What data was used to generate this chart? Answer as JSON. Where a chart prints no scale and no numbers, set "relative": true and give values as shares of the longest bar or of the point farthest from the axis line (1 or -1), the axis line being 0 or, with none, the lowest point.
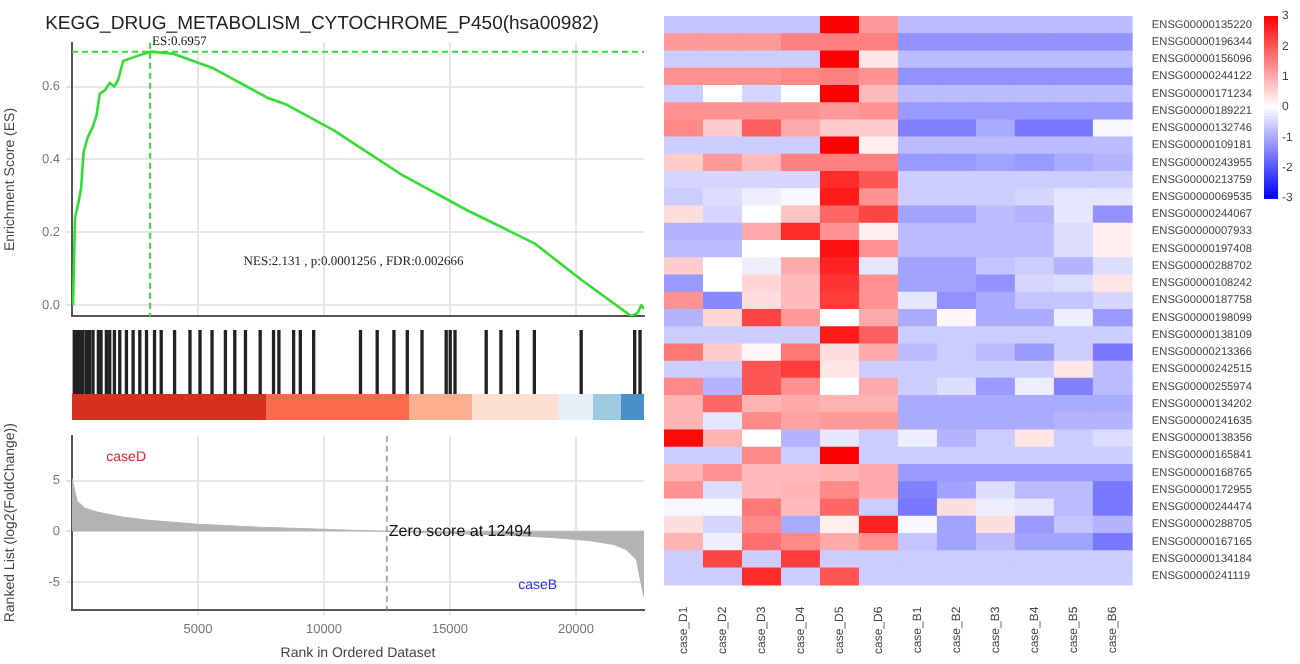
{
  "chart_data": [
    {
      "type": "line",
      "title": "KEGG_DRUG_METABOLISM_CYTOCHROME_P450(hsa00982)",
      "ylabel": "Enrichment Score (ES)",
      "color": "#33dd33",
      "x": [
        40,
        120,
        250,
        360,
        460,
        620,
        830,
        970,
        1100,
        1310,
        1500,
        1680,
        1840,
        2030,
        2430,
        3100,
        4020,
        4810,
        5610,
        7730,
        8530,
        10390,
        13040,
        15700,
        18350,
        20210,
        22200,
        22460,
        22590,
        22700
      ],
      "values": [
        0,
        0.24,
        0.28,
        0.32,
        0.42,
        0.46,
        0.49,
        0.52,
        0.58,
        0.59,
        0.61,
        0.6,
        0.62,
        0.67,
        0.68,
        0.6957,
        0.69,
        0.67,
        0.65,
        0.57,
        0.55,
        0.48,
        0.36,
        0.26,
        0.17,
        0.07,
        -0.03,
        -0.02,
        0,
        -0.01
      ],
      "xlim": [
        0,
        22700
      ],
      "xticks": [
        5000,
        10000,
        15000,
        20000
      ],
      "ylim": [
        -0.03,
        0.72
      ],
      "yticks": [
        {
          "value": 0,
          "label": "0.0"
        },
        0.2,
        0.4,
        0.6
      ],
      "tick_labels": "y",
      "grid": true,
      "ref_lines": [
        {
          "axis": "x",
          "value": 3100,
          "color": "#33dd33",
          "line_style": "dashed"
        },
        {
          "axis": "y",
          "value": 0.6957,
          "color": "#33dd33",
          "line_style": "dashed"
        }
      ],
      "annotations": [
        {
          "text": "ES:0.6957",
          "x": 3100,
          "y": 0.6957
        },
        "NES:2.131 , p:0.0001256 , FDR:0.002666"
      ]
    },
    {
      "type": "bar",
      "relative": true,
      "color": "#222222",
      "tick_labels": false,
      "xlim": [
        0,
        22700
      ],
      "x": [
        90,
        170,
        250,
        330,
        435,
        568,
        700,
        833,
        1046,
        1152,
        1364,
        1497,
        1683,
        1895,
        2160,
        2426,
        2691,
        2957,
        3275,
        3540,
        4071,
        4682,
        5080,
        5557,
        6088,
        6460,
        6884,
        7468,
        7998,
        8211,
        8795,
        9060,
        9591,
        11449,
        12112,
        12775,
        13306,
        13890,
        14850,
        15010,
        15200,
        16438,
        17022,
        17685,
        18349,
        20207,
        22330,
        22542
      ],
      "values": [
        1,
        1,
        1,
        1,
        1,
        1,
        1,
        1,
        1,
        1,
        1,
        1,
        1,
        1,
        1,
        1,
        1,
        1,
        1,
        1,
        1,
        1,
        1,
        1,
        1,
        1,
        1,
        1,
        1,
        1,
        1,
        1,
        1,
        1,
        1,
        1,
        1,
        1,
        1,
        1,
        1,
        1,
        1,
        1,
        1,
        1,
        1,
        1
      ]
    },
    {
      "type": "area",
      "xlabel": "Rank in Ordered Dataset",
      "ylabel": "Ranked List (log2(FoldChange))",
      "color": "#b3b3b3",
      "x": [
        0,
        200,
        500,
        1000,
        2000,
        3000,
        5000,
        7500,
        10000,
        12494,
        15000,
        17500,
        19000,
        20500,
        21500,
        22000,
        22400,
        22700
      ],
      "values": [
        5.2,
        3,
        2.3,
        1.9,
        1.4,
        1.1,
        0.7,
        0.4,
        0.2,
        0,
        -0.2,
        -0.4,
        -0.6,
        -0.9,
        -1.3,
        -1.8,
        -2.8,
        -6.5
      ],
      "xlim": [
        0,
        22700
      ],
      "xticks": [
        5000,
        10000,
        15000,
        20000
      ],
      "ylim": [
        -7.7,
        9.4
      ],
      "yticks": [
        -5,
        0,
        5
      ],
      "grid": true,
      "ref_lines": [
        {
          "axis": "x",
          "value": 12494,
          "color": "#aaaaaa",
          "line_style": "dashed"
        }
      ],
      "annotations": [
        "caseD",
        "caseB",
        {
          "text": "Zero score at 12494",
          "x": 12494,
          "y": 0
        }
      ]
    },
    {
      "type": "heatmap",
      "categories": [
        "case_D1",
        "case_D2",
        "case_D3",
        "case_D4",
        "case_D5",
        "case_D6",
        "case_B1",
        "case_B2",
        "case_B3",
        "case_B4",
        "case_B5",
        "case_B6"
      ],
      "y_categories": [
        "ENSG00000135220",
        "ENSG00000196344",
        "ENSG00000156096",
        "ENSG00000244122",
        "ENSG00000171234",
        "ENSG00000189221",
        "ENSG00000132746",
        "ENSG00000109181",
        "ENSG00000243955",
        "ENSG00000213759",
        "ENSG00000069535",
        "ENSG00000244067",
        "ENSG00000007933",
        "ENSG00000197408",
        "ENSG00000288702",
        "ENSG00000108242",
        "ENSG00000187758",
        "ENSG00000198099",
        "ENSG00000138109",
        "ENSG00000213366",
        "ENSG00000242515",
        "ENSG00000255974",
        "ENSG00000134202",
        "ENSG00000241635",
        "ENSG00000138356",
        "ENSG00000165841",
        "ENSG00000168765",
        "ENSG00000172955",
        "ENSG00000244474",
        "ENSG00000288705",
        "ENSG00000167165",
        "ENSG00000134184",
        "ENSG00000241119"
      ],
      "cells": [
        [
          -0.7,
          -0.7,
          -0.7,
          -0.7,
          3,
          1.2,
          -0.8,
          -0.8,
          -0.8,
          -0.8,
          -0.8,
          -0.8
        ],
        [
          1.2,
          1.2,
          1.2,
          1.5,
          1.5,
          1.5,
          -1.3,
          -1.3,
          -1.3,
          -1.3,
          -1.3,
          -1.3
        ],
        [
          -0.6,
          -0.6,
          -0.6,
          -0.6,
          3,
          0.3,
          -0.8,
          -0.8,
          -0.8,
          -0.8,
          -0.8,
          -0.8
        ],
        [
          1.3,
          1.3,
          1.3,
          1.4,
          1.5,
          1.3,
          -1.3,
          -1.3,
          -1.3,
          -1.3,
          -1.3,
          -1.3
        ],
        [
          -0.6,
          0,
          -0.5,
          0,
          3,
          0.8,
          -0.8,
          -0.8,
          -0.8,
          -0.8,
          -0.8,
          -0.8
        ],
        [
          1.3,
          1.3,
          1.3,
          1.3,
          1.2,
          1.3,
          -1.2,
          -1.2,
          -1.2,
          -1.2,
          -1.2,
          -1.2
        ],
        [
          1.4,
          0.6,
          1.9,
          1,
          0.6,
          0.6,
          -1.5,
          -1.5,
          -1,
          -1.6,
          -1.6,
          -0.1
        ],
        [
          -0.6,
          -0.6,
          -0.6,
          -0.6,
          3,
          0.2,
          -0.8,
          -0.8,
          -0.8,
          -0.8,
          -0.8,
          -0.8
        ],
        [
          0.6,
          1.2,
          0.8,
          1.5,
          1.5,
          1.5,
          -1.2,
          -1.2,
          -1.1,
          -1.2,
          -1,
          -0.9
        ],
        [
          -0.5,
          -0.5,
          -0.5,
          -0.5,
          2.5,
          2,
          -0.6,
          -0.6,
          -0.6,
          -0.6,
          -0.6,
          -0.6
        ],
        [
          -0.6,
          -0.4,
          -0.2,
          -0.1,
          2.7,
          1.3,
          -0.6,
          -0.6,
          -0.6,
          -0.5,
          -0.3,
          -0.3
        ],
        [
          0.4,
          -0.5,
          0,
          0.7,
          1.8,
          2.2,
          -1.1,
          -1.1,
          -0.8,
          -0.9,
          -0.3,
          -1.3
        ],
        [
          -0.9,
          -0.9,
          1,
          2.5,
          1.3,
          0.2,
          -0.8,
          -0.8,
          -0.8,
          -0.8,
          -0.4,
          0.2
        ],
        [
          -0.8,
          -0.8,
          0,
          0,
          2.8,
          1.3,
          -0.8,
          -0.8,
          -0.8,
          -0.8,
          -0.4,
          0.2
        ],
        [
          0.6,
          0,
          -0.2,
          1,
          2.6,
          -0.3,
          -1.1,
          -1.1,
          -0.7,
          -0.6,
          -0.9,
          -0.4
        ],
        [
          -1.2,
          0,
          0.5,
          0.8,
          2.4,
          1.3,
          -1.1,
          -1.1,
          -1.3,
          -0.5,
          -0.4,
          0.3
        ],
        [
          1.3,
          -1.4,
          0.4,
          0.8,
          2.3,
          1.3,
          -0.3,
          -1.3,
          -1,
          -0.7,
          -0.7,
          -0.5
        ],
        [
          -0.9,
          0.5,
          2.2,
          1.2,
          0,
          1,
          -1,
          0.1,
          -1,
          -1,
          -0.2,
          -1.2
        ],
        [
          -0.6,
          -0.6,
          -0.6,
          -0.6,
          2.7,
          1.9,
          -0.6,
          -0.6,
          -0.6,
          -0.6,
          -0.6,
          -0.6
        ],
        [
          1.6,
          0.6,
          0.1,
          1.6,
          0.4,
          1,
          -0.8,
          -0.6,
          -0.8,
          -1.2,
          -0.6,
          -1.6
        ],
        [
          -0.6,
          -0.6,
          2,
          2.3,
          0.3,
          -0.6,
          -0.6,
          -0.6,
          -0.6,
          -0.6,
          0.3,
          -0.8
        ],
        [
          1.4,
          -0.9,
          2,
          1.3,
          0,
          1,
          -0.6,
          -0.4,
          -1.2,
          -0.2,
          -1.5,
          -0.8
        ],
        [
          0.9,
          1.8,
          0.9,
          1,
          0.9,
          0.9,
          -1,
          -1,
          -1,
          -1,
          -1,
          -1
        ],
        [
          0.9,
          -0.3,
          1.4,
          1.1,
          1.2,
          1.2,
          -1,
          -1,
          -1,
          -1,
          -0.9,
          -0.9
        ],
        [
          2.9,
          0.9,
          0,
          -0.9,
          -0.3,
          -0.6,
          -0.2,
          -0.9,
          -0.6,
          0.3,
          -0.6,
          -0.4
        ],
        [
          -0.6,
          -0.6,
          1.4,
          -0.6,
          3,
          -0.6,
          -0.6,
          -0.6,
          -0.6,
          -0.6,
          -0.6,
          -0.6
        ],
        [
          0.9,
          1.3,
          0.8,
          0.8,
          0.9,
          1,
          -1.2,
          -1.2,
          -1.2,
          -1.2,
          -1.2,
          -1.2
        ],
        [
          1.3,
          -0.4,
          0.8,
          0.9,
          1.4,
          1,
          -1.5,
          -1.1,
          -0.4,
          -0.8,
          -0.8,
          -1.6
        ],
        [
          -0.1,
          -0.1,
          1.6,
          0.8,
          1.8,
          -0.6,
          -1.6,
          0.4,
          -0.2,
          -0.3,
          -0.8,
          -1.6
        ],
        [
          0.4,
          -0.5,
          1.4,
          -1,
          0.2,
          2.6,
          -0.1,
          -1.1,
          0.4,
          -1.2,
          -0.7,
          -0.9
        ],
        [
          0.9,
          -0.2,
          1.7,
          1.4,
          1,
          1.3,
          -0.7,
          -1.1,
          -0.8,
          -1.1,
          -1.1,
          -1.6
        ],
        [
          -0.6,
          2.2,
          -0.6,
          2.3,
          -0.6,
          -0.6,
          -0.6,
          -0.6,
          -0.6,
          -0.6,
          -0.6,
          -0.6
        ],
        [
          -0.6,
          -0.6,
          2.5,
          -0.6,
          2,
          -0.6,
          -0.6,
          -0.6,
          -0.6,
          -0.6,
          -0.6,
          -0.6
        ]
      ],
      "clim": [
        -3,
        3
      ],
      "cticks": [
        -3,
        -2,
        -1,
        0,
        1,
        2,
        3
      ]
    }
  ]
}
